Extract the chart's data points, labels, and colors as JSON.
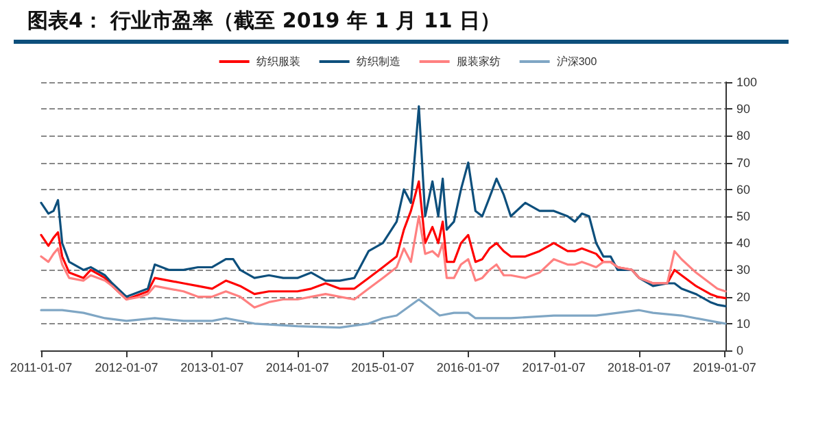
{
  "chart_data": {
    "type": "line",
    "title": "图表4：  行业市盈率（截至 2019 年 1 月 11 日）",
    "x": [
      "2011-01-07",
      "2011-02-07",
      "2011-03-01",
      "2011-03-20",
      "2011-04-07",
      "2011-05-07",
      "2011-07-07",
      "2011-08-07",
      "2011-10-07",
      "2011-11-07",
      "2012-01-07",
      "2012-03-07",
      "2012-04-07",
      "2012-05-07",
      "2012-07-07",
      "2012-09-07",
      "2012-11-07",
      "2013-01-07",
      "2013-03-07",
      "2013-04-07",
      "2013-05-07",
      "2013-07-07",
      "2013-09-07",
      "2013-11-07",
      "2014-01-07",
      "2014-03-07",
      "2014-05-07",
      "2014-07-07",
      "2014-09-07",
      "2014-11-07",
      "2015-01-07",
      "2015-03-07",
      "2015-04-07",
      "2015-05-07",
      "2015-06-10",
      "2015-07-07",
      "2015-08-07",
      "2015-09-01",
      "2015-09-20",
      "2015-10-07",
      "2015-11-07",
      "2015-12-07",
      "2016-01-07",
      "2016-02-07",
      "2016-03-07",
      "2016-04-07",
      "2016-05-07",
      "2016-06-07",
      "2016-07-07",
      "2016-09-07",
      "2016-11-07",
      "2017-01-07",
      "2017-03-07",
      "2017-04-07",
      "2017-05-07",
      "2017-06-07",
      "2017-07-07",
      "2017-08-07",
      "2017-09-07",
      "2017-10-07",
      "2017-12-07",
      "2018-01-07",
      "2018-03-07",
      "2018-05-07",
      "2018-06-07",
      "2018-07-07",
      "2018-09-07",
      "2018-11-07",
      "2018-12-07",
      "2019-01-11"
    ],
    "series": [
      {
        "name": "纺织服装",
        "color": "#ff0000",
        "values": [
          43,
          39,
          42,
          44,
          35,
          29,
          27,
          30,
          27,
          24,
          19,
          21,
          22,
          27,
          26,
          25,
          24,
          23,
          26,
          25,
          24,
          21,
          22,
          22,
          22,
          23,
          25,
          23,
          23,
          27,
          31,
          35,
          45,
          52,
          63,
          40,
          46,
          40,
          48,
          33,
          33,
          40,
          43,
          33,
          34,
          38,
          40,
          37,
          35,
          35,
          37,
          40,
          37,
          37,
          38,
          37,
          36,
          33,
          33,
          31,
          30,
          27,
          25,
          25,
          30,
          28,
          24,
          21,
          20,
          19.5
        ]
      },
      {
        "name": "纺织制造",
        "color": "#0d4f7c",
        "values": [
          55,
          51,
          52,
          56,
          40,
          33,
          30,
          31,
          28,
          25,
          20,
          22,
          23,
          32,
          30,
          30,
          31,
          31,
          34,
          34,
          30,
          27,
          28,
          27,
          27,
          29,
          26,
          26,
          27,
          37,
          40,
          48,
          60,
          55,
          91,
          50,
          63,
          50,
          64,
          45,
          48,
          60,
          70,
          52,
          50,
          57,
          64,
          58,
          50,
          55,
          52,
          52,
          50,
          48,
          51,
          50,
          40,
          35,
          35,
          30,
          30,
          27,
          24,
          25,
          25,
          23,
          21,
          18,
          17,
          16.5
        ]
      },
      {
        "name": "服装家纺",
        "color": "#ff8080",
        "values": [
          35,
          33,
          36,
          38,
          32,
          27,
          26,
          28,
          26,
          24,
          19,
          20,
          21,
          24,
          23,
          22,
          20,
          20,
          22,
          21,
          20,
          16,
          18,
          19,
          19,
          20,
          21,
          20,
          19,
          23,
          27,
          31,
          38,
          33,
          50,
          36,
          37,
          35,
          40,
          27,
          27,
          32,
          34,
          26,
          27,
          30,
          32,
          28,
          28,
          27,
          29,
          34,
          32,
          32,
          33,
          32,
          31,
          33,
          33,
          31,
          30,
          27,
          25,
          25,
          37,
          34,
          29,
          25,
          23,
          22
        ]
      },
      {
        "name": "沪深300",
        "color": "#7fa6c4",
        "x": [
          "2011-01-07",
          "2011-04-07",
          "2011-07-07",
          "2011-10-07",
          "2012-01-07",
          "2012-05-07",
          "2012-09-07",
          "2013-01-07",
          "2013-03-07",
          "2013-07-07",
          "2014-01-07",
          "2014-07-07",
          "2014-11-07",
          "2015-01-07",
          "2015-03-07",
          "2015-06-10",
          "2015-09-07",
          "2015-11-07",
          "2016-01-07",
          "2016-02-07",
          "2016-07-07",
          "2017-01-07",
          "2017-07-07",
          "2018-01-07",
          "2018-03-07",
          "2018-07-07",
          "2018-11-07",
          "2019-01-11"
        ],
        "values": [
          15,
          15,
          14,
          12,
          11,
          12,
          11,
          11,
          12,
          10,
          9,
          8.5,
          10,
          12,
          13,
          19,
          13,
          14,
          14,
          12,
          12,
          13,
          13,
          15,
          14,
          13,
          11,
          10
        ]
      }
    ],
    "xlim": [
      "2011-01-07",
      "2019-01-11"
    ],
    "xticks": [
      "2011-01-07",
      "2012-01-07",
      "2013-01-07",
      "2014-01-07",
      "2015-01-07",
      "2016-01-07",
      "2017-01-07",
      "2018-01-07",
      "2019-01-07"
    ],
    "ylim": [
      0,
      100
    ],
    "yticks": [
      0,
      10,
      20,
      30,
      40,
      50,
      60,
      70,
      80,
      90,
      100
    ],
    "grid": "y",
    "legend": "top",
    "marker": "none",
    "line_style": "solid"
  }
}
